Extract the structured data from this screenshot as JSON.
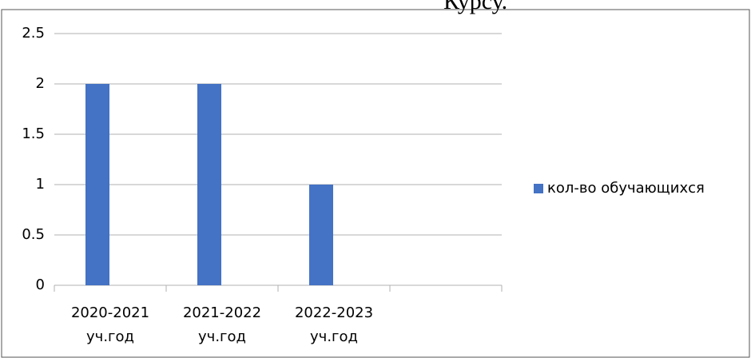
{
  "caption": "Курсу.",
  "chart_data": {
    "type": "bar",
    "categories": [
      "2020-2021 уч.год",
      "2021-2022 уч.год",
      "2022-2023 уч.год",
      null
    ],
    "series": [
      {
        "name": "кол-во обучающихся",
        "color": "#4472c4",
        "values": [
          2,
          2,
          1,
          null
        ]
      }
    ],
    "ylim": [
      0,
      2.5
    ],
    "yticks": [
      0,
      0.5,
      1,
      1.5,
      2,
      2.5
    ],
    "grid": true,
    "legend": "right"
  }
}
